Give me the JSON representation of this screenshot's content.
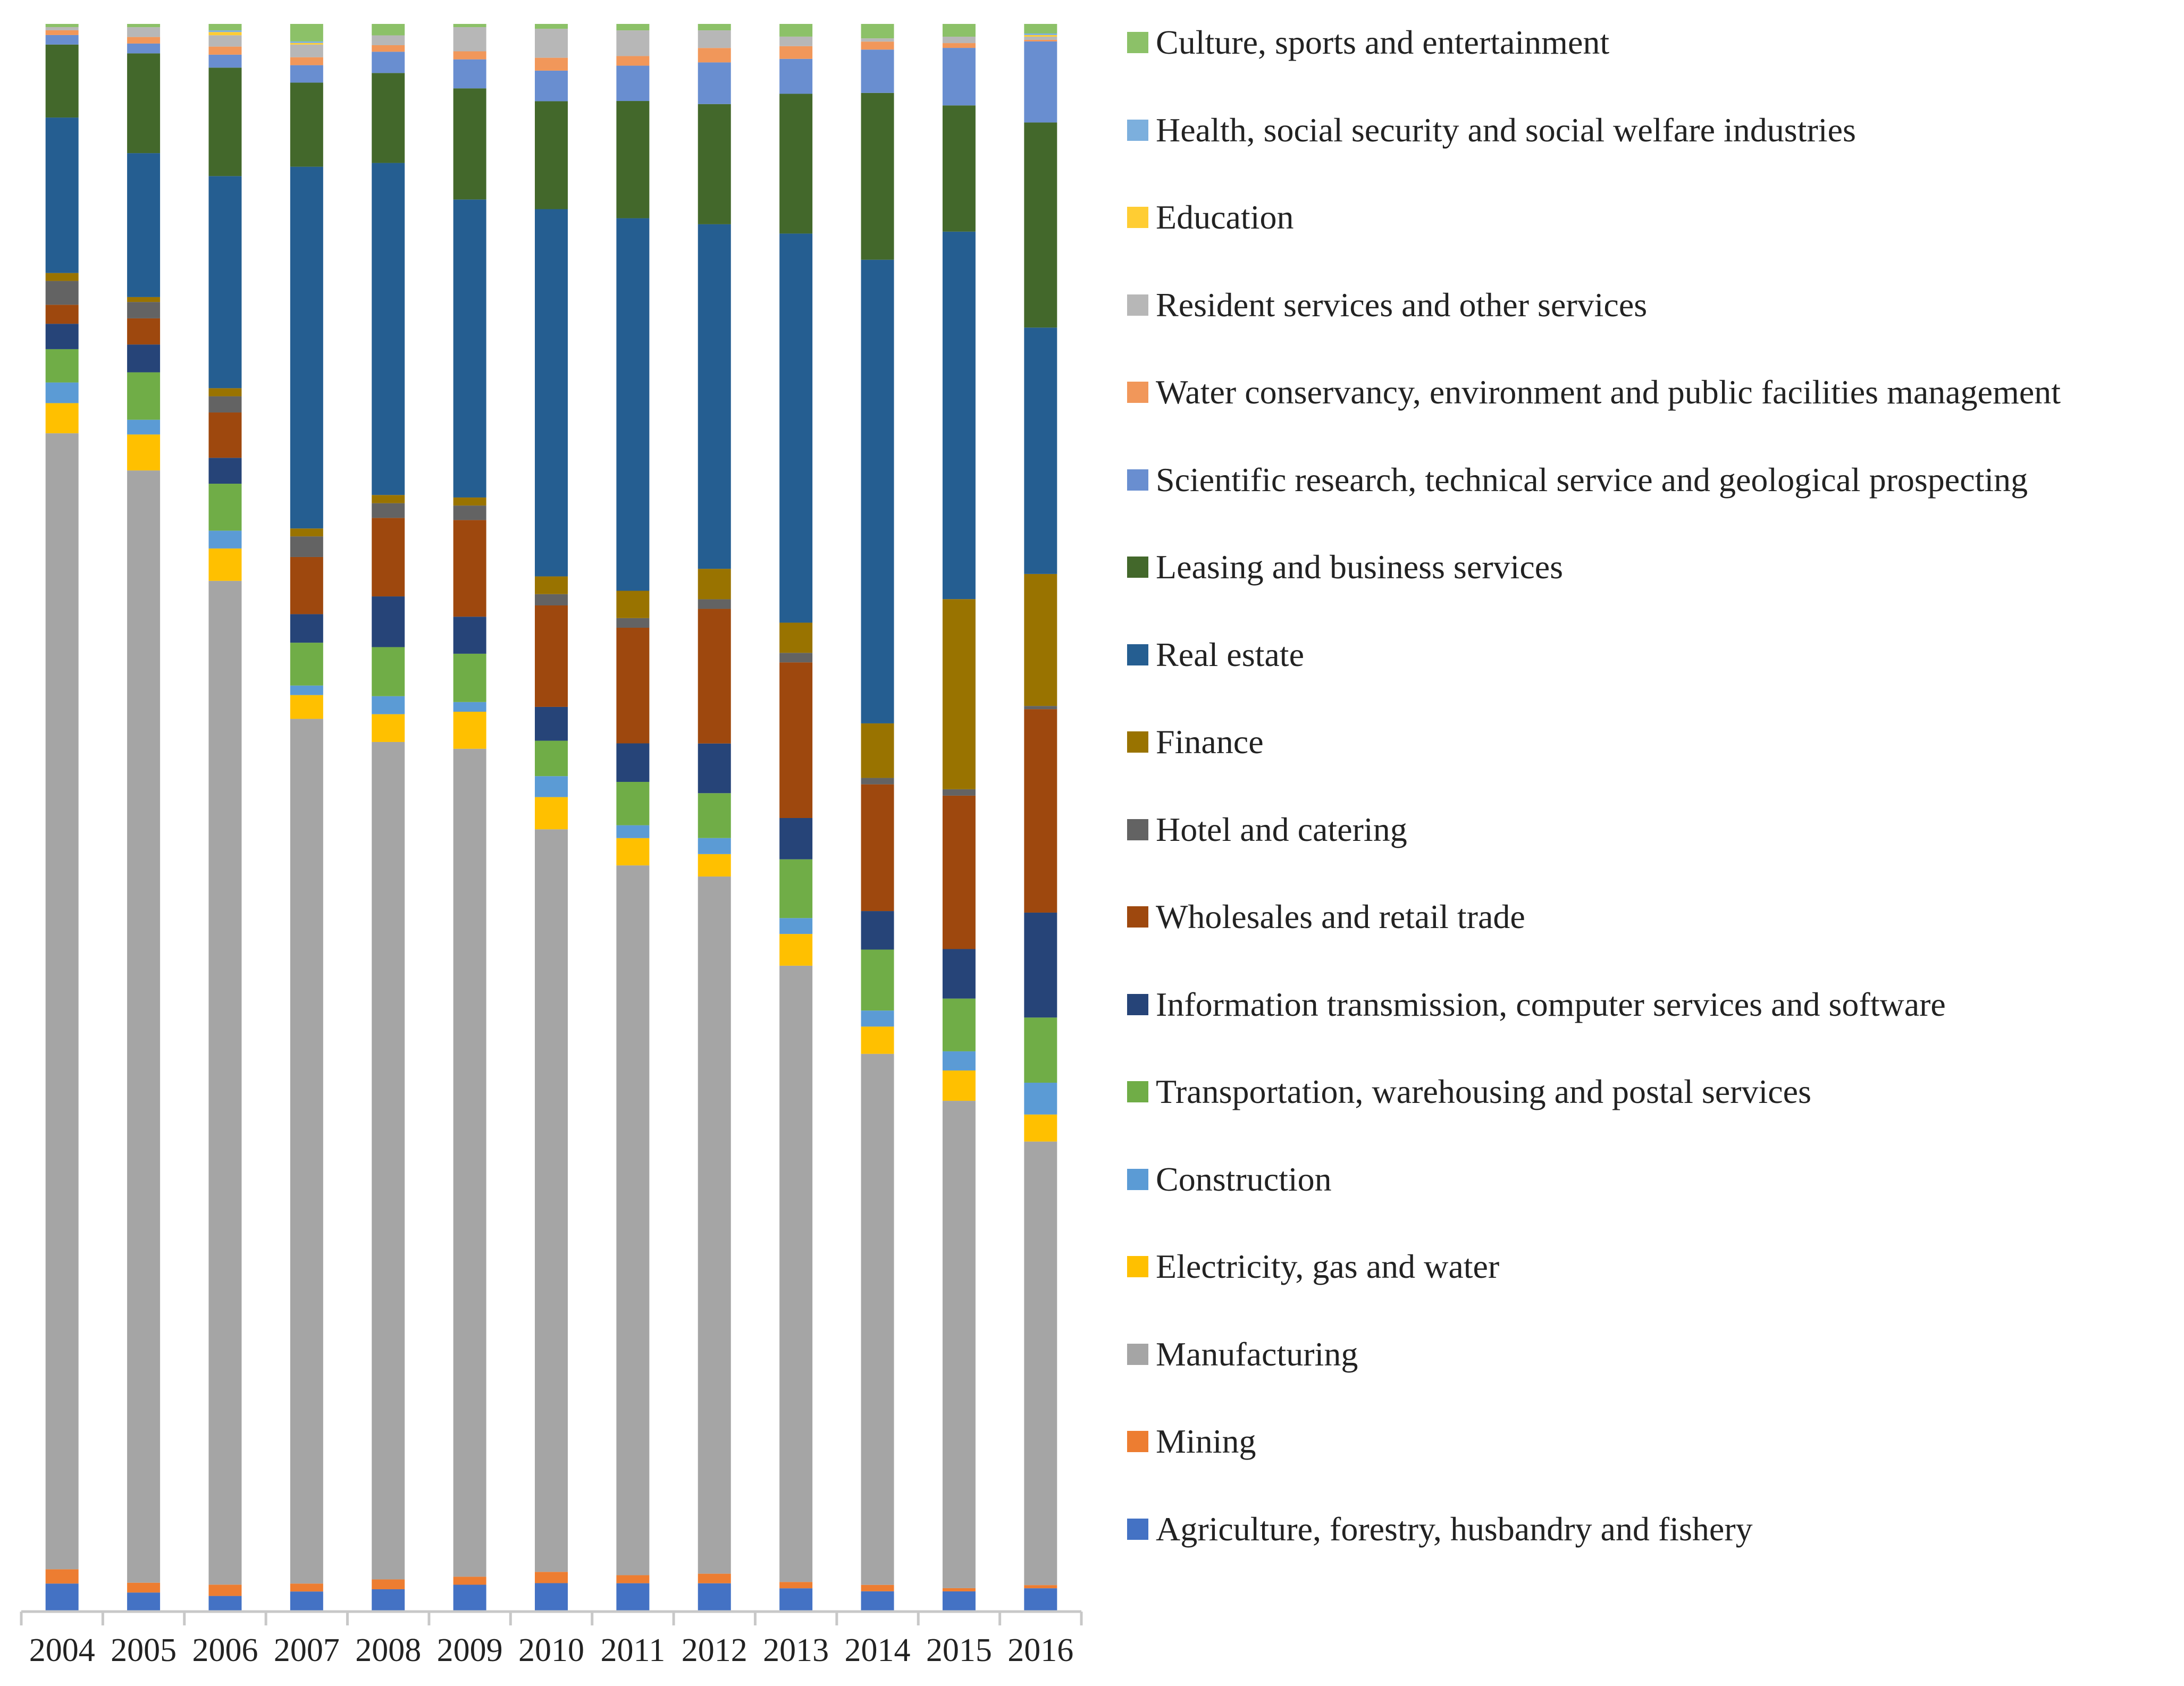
{
  "chart_data": {
    "type": "bar",
    "stacked": true,
    "normalized": true,
    "title": "",
    "xlabel": "",
    "ylabel": "",
    "ylim": [
      0,
      100
    ],
    "grid": false,
    "legend_position": "right",
    "categories": [
      "2004",
      "2005",
      "2006",
      "2007",
      "2008",
      "2009",
      "2010",
      "2011",
      "2012",
      "2013",
      "2014",
      "2015",
      "2016"
    ],
    "series": [
      {
        "name": "Agriculture, forestry, husbandry and fishery",
        "color": "#4472C4",
        "values": [
          1.7,
          1.1,
          0.9,
          1.2,
          1.3,
          1.6,
          1.7,
          1.7,
          1.7,
          1.4,
          1.2,
          1.2,
          1.4
        ]
      },
      {
        "name": "Mining",
        "color": "#ED7D31",
        "values": [
          0.9,
          0.6,
          0.7,
          0.5,
          0.6,
          0.5,
          0.7,
          0.5,
          0.6,
          0.4,
          0.4,
          0.2,
          0.2
        ]
      },
      {
        "name": "Manufacturing",
        "color": "#A5A5A5",
        "values": [
          71.6,
          68.0,
          62.0,
          54.5,
          51.2,
          51.4,
          46.1,
          44.2,
          43.5,
          38.8,
          33.1,
          30.5,
          27.9
        ]
      },
      {
        "name": "Electricity, gas and water",
        "color": "#FFC000",
        "values": [
          1.9,
          2.2,
          2.0,
          1.5,
          1.7,
          2.3,
          2.0,
          1.7,
          1.4,
          2.0,
          1.7,
          1.9,
          1.7
        ]
      },
      {
        "name": "Construction",
        "color": "#5B9BD5",
        "values": [
          1.3,
          0.9,
          1.1,
          0.6,
          1.1,
          0.6,
          1.3,
          0.8,
          1.0,
          1.0,
          1.0,
          1.2,
          2.0
        ]
      },
      {
        "name": "Transportation, warehousing and postal services",
        "color": "#70AD47",
        "values": [
          2.1,
          2.9,
          2.9,
          2.7,
          3.0,
          3.0,
          2.2,
          2.7,
          2.8,
          3.7,
          3.8,
          3.3,
          4.1
        ]
      },
      {
        "name": "Information transmission, computer services and software",
        "color": "#264478",
        "values": [
          1.6,
          1.7,
          1.6,
          1.8,
          3.1,
          2.3,
          2.1,
          2.4,
          3.1,
          2.6,
          2.4,
          3.1,
          6.6
        ]
      },
      {
        "name": "Wholesales and retail trade",
        "color": "#9E480E",
        "values": [
          1.2,
          1.6,
          2.8,
          3.6,
          4.8,
          6.0,
          6.3,
          7.2,
          8.4,
          9.8,
          7.9,
          9.6,
          12.8
        ]
      },
      {
        "name": "Hotel and catering",
        "color": "#636363",
        "values": [
          1.5,
          1.0,
          1.0,
          1.3,
          0.9,
          0.9,
          0.7,
          0.6,
          0.6,
          0.6,
          0.4,
          0.4,
          0.2
        ]
      },
      {
        "name": "Finance",
        "color": "#997300",
        "values": [
          0.5,
          0.3,
          0.5,
          0.5,
          0.5,
          0.5,
          1.1,
          1.7,
          1.9,
          1.9,
          3.4,
          11.9,
          8.3
        ]
      },
      {
        "name": "Real estate",
        "color": "#255E91",
        "values": [
          9.8,
          8.8,
          13.1,
          22.8,
          20.3,
          18.5,
          22.8,
          23.2,
          21.5,
          24.5,
          28.9,
          23.0,
          15.5
        ]
      },
      {
        "name": "Leasing and business services",
        "color": "#43682B",
        "values": [
          4.6,
          6.1,
          6.7,
          5.3,
          5.5,
          6.9,
          6.7,
          7.3,
          7.5,
          8.8,
          10.4,
          7.9,
          12.9
        ]
      },
      {
        "name": "Scientific research, technical service and geological prospecting",
        "color": "#698ED0",
        "values": [
          0.6,
          0.6,
          0.8,
          1.1,
          1.3,
          1.8,
          1.9,
          2.2,
          2.6,
          2.2,
          2.7,
          3.6,
          5.1
        ]
      },
      {
        "name": "Water conservancy, environment and public facilities management",
        "color": "#F1975A",
        "values": [
          0.3,
          0.4,
          0.5,
          0.5,
          0.4,
          0.5,
          0.8,
          0.6,
          0.9,
          0.8,
          0.5,
          0.3,
          0.1
        ]
      },
      {
        "name": "Resident services and other services",
        "color": "#B7B7B7",
        "values": [
          0.2,
          0.6,
          0.7,
          0.8,
          0.6,
          1.5,
          1.8,
          1.6,
          1.1,
          0.6,
          0.2,
          0.4,
          0.2
        ]
      },
      {
        "name": "Education",
        "color": "#FFCD33",
        "values": [
          0.0,
          0.0,
          0.2,
          0.1,
          0.0,
          0.0,
          0.0,
          0.0,
          0.0,
          0.0,
          0.0,
          0.0,
          0.1
        ]
      },
      {
        "name": "Health, social security and social welfare industries",
        "color": "#7CAFDD",
        "values": [
          0.0,
          0.0,
          0.1,
          0.1,
          0.0,
          0.0,
          0.0,
          0.0,
          0.0,
          0.0,
          0.0,
          0.0,
          0.1
        ]
      },
      {
        "name": "Culture, sports and entertainment",
        "color": "#8CC168",
        "values": [
          0.2,
          0.2,
          0.4,
          1.1,
          0.7,
          0.2,
          0.3,
          0.4,
          0.4,
          0.8,
          0.9,
          0.8,
          0.6
        ]
      }
    ]
  }
}
